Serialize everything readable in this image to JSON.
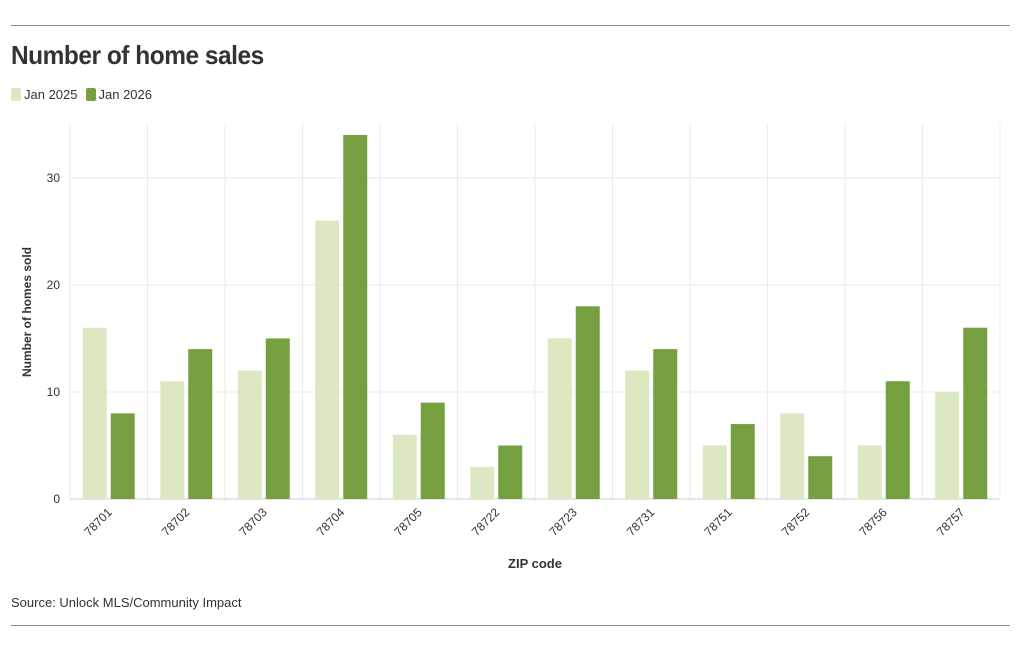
{
  "chart_data": {
    "type": "bar",
    "title": "Number of home sales",
    "xlabel": "ZIP code",
    "ylabel": "Number of homes sold",
    "ylim": [
      0,
      35
    ],
    "yticks": [
      0,
      10,
      20,
      30
    ],
    "grid": true,
    "legend_position": "top-left",
    "categories": [
      "78701",
      "78702",
      "78703",
      "78704",
      "78705",
      "78722",
      "78723",
      "78731",
      "78751",
      "78752",
      "78756",
      "78757"
    ],
    "series": [
      {
        "name": "Jan 2025",
        "color": "#dce8c2",
        "values": [
          16,
          11,
          12,
          26,
          6,
          3,
          15,
          12,
          5,
          8,
          5,
          10
        ]
      },
      {
        "name": "Jan 2026",
        "color": "#76a040",
        "values": [
          8,
          14,
          15,
          34,
          9,
          5,
          18,
          14,
          7,
          4,
          11,
          16
        ]
      }
    ],
    "source": "Source: Unlock MLS/Community Impact"
  }
}
